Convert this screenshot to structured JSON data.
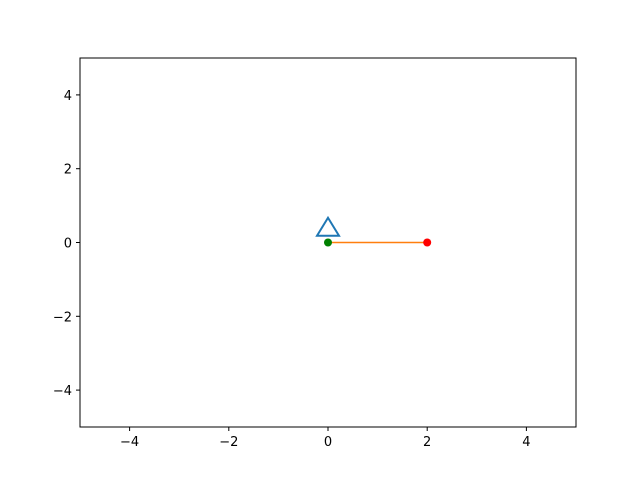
{
  "chart_data": {
    "type": "line",
    "xlim": [
      -5,
      5
    ],
    "ylim": [
      -5,
      5
    ],
    "xticks": [
      -4,
      -2,
      0,
      2,
      4
    ],
    "yticks": [
      -4,
      -2,
      0,
      2,
      4
    ],
    "xtick_labels": [
      "−4",
      "−2",
      "0",
      "2",
      "4"
    ],
    "ytick_labels": [
      "−4",
      "−2",
      "0",
      "2",
      "4"
    ],
    "grid": false,
    "series": [
      {
        "kind": "marker",
        "marker": "triangle-open",
        "x": 0,
        "y": 0.4,
        "color": "#1f77b4"
      },
      {
        "kind": "line",
        "x": [
          0,
          2
        ],
        "y": [
          0,
          0
        ],
        "color": "#ff7f0e"
      },
      {
        "kind": "point",
        "x": 0,
        "y": 0,
        "color": "#008000"
      },
      {
        "kind": "point",
        "x": 2,
        "y": 0,
        "color": "#ff0000"
      }
    ]
  }
}
